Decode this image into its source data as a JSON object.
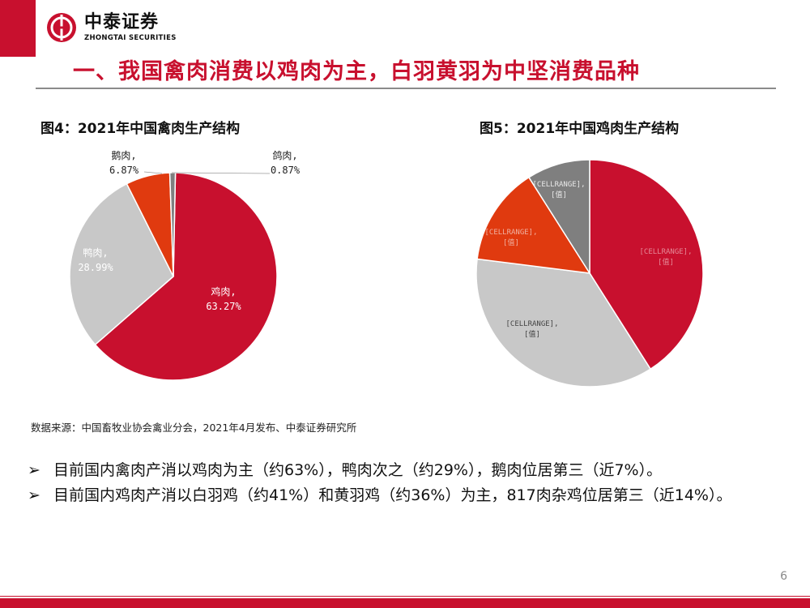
{
  "header": {
    "logo_cn": "中泰证券",
    "logo_en": "ZHONGTAI SECURITIES",
    "title": "一、我国禽肉消费以鸡肉为主，白羽黄羽为中坚消费品种"
  },
  "colors": {
    "red": "#c8102e",
    "gray": "#c8c8c8",
    "orange": "#e03a0f",
    "dark_gray": "#7f7f7f"
  },
  "chart_data": [
    {
      "type": "pie",
      "title": "图4：2021年中国禽肉生产结构",
      "slices": [
        {
          "name": "鸡肉",
          "value": 63.27,
          "label_line1": "鸡肉,",
          "label_line2": "63.27%",
          "color": "#c8102e"
        },
        {
          "name": "鸭肉",
          "value": 28.99,
          "label_line1": "鸭肉,",
          "label_line2": "28.99%",
          "color": "#c8c8c8"
        },
        {
          "name": "鹅肉",
          "value": 6.87,
          "label_line1": "鹅肉,",
          "label_line2": "6.87%",
          "color": "#e03a0f"
        },
        {
          "name": "鸽肉",
          "value": 0.87,
          "label_line1": "鸽肉,",
          "label_line2": "0.87%",
          "color": "#7f7f7f"
        }
      ]
    },
    {
      "type": "pie",
      "title": "图5：2021年中国鸡肉生产结构",
      "slices": [
        {
          "value": 41,
          "label_line1": "[CELLRANGE],",
          "label_line2": "[值]",
          "color": "#c8102e"
        },
        {
          "value": 36,
          "label_line1": "[CELLRANGE],",
          "label_line2": "[值]",
          "color": "#c8c8c8"
        },
        {
          "value": 14,
          "label_line1": "[CELLRANGE],",
          "label_line2": "[值]",
          "color": "#e03a0f"
        },
        {
          "value": 9,
          "label_line1": "[CELLRANGE],",
          "label_line2": "[值]",
          "color": "#7f7f7f"
        }
      ]
    }
  ],
  "source": "数据来源：中国畜牧业协会禽业分会，2021年4月发布、中泰证券研究所",
  "bullets": [
    "目前国内禽肉产消以鸡肉为主（约63%），鸭肉次之（约29%），鹅肉位居第三（近7%）。",
    "目前国内鸡肉产消以白羽鸡（约41%）和黄羽鸡（约36%）为主，817肉杂鸡位居第三（近14%）。"
  ],
  "bullet_icon": "arrow-bullet-icon",
  "page_number": "6"
}
